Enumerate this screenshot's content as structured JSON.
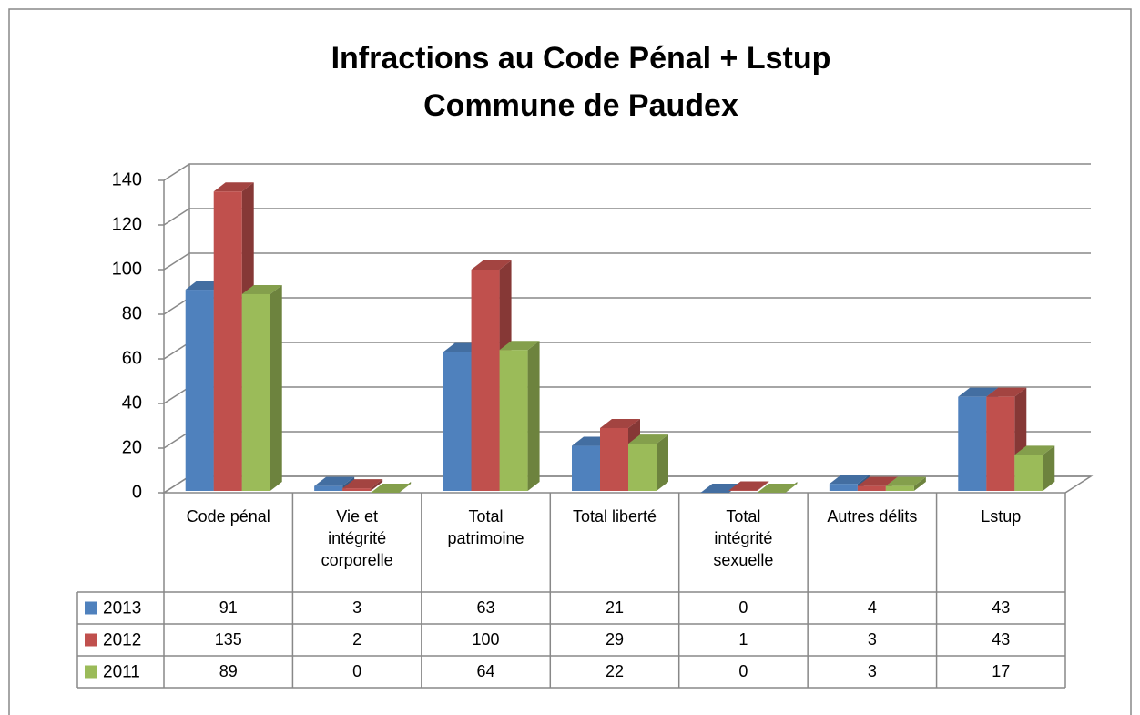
{
  "chart_data": {
    "type": "bar3d",
    "title": [
      "Infractions au Code Pénal + Lstup",
      "Commune de Paudex"
    ],
    "categories": [
      "Code pénal",
      "Vie et intégrité corporelle",
      "Total patrimoine",
      "Total liberté",
      "Total intégrité sexuelle",
      "Autres délits",
      "Lstup"
    ],
    "series": [
      {
        "name": "2013",
        "color": "#4f81bd",
        "values": [
          91,
          3,
          63,
          21,
          0,
          4,
          43
        ]
      },
      {
        "name": "2012",
        "color": "#c0504d",
        "values": [
          135,
          2,
          100,
          29,
          1,
          3,
          43
        ]
      },
      {
        "name": "2011",
        "color": "#9bbb59",
        "values": [
          89,
          0,
          64,
          22,
          0,
          3,
          17
        ]
      }
    ],
    "ylim": [
      0,
      140
    ],
    "yticks": [
      0,
      20,
      40,
      60,
      80,
      100,
      120,
      140
    ],
    "grid": true,
    "data_table": true
  }
}
